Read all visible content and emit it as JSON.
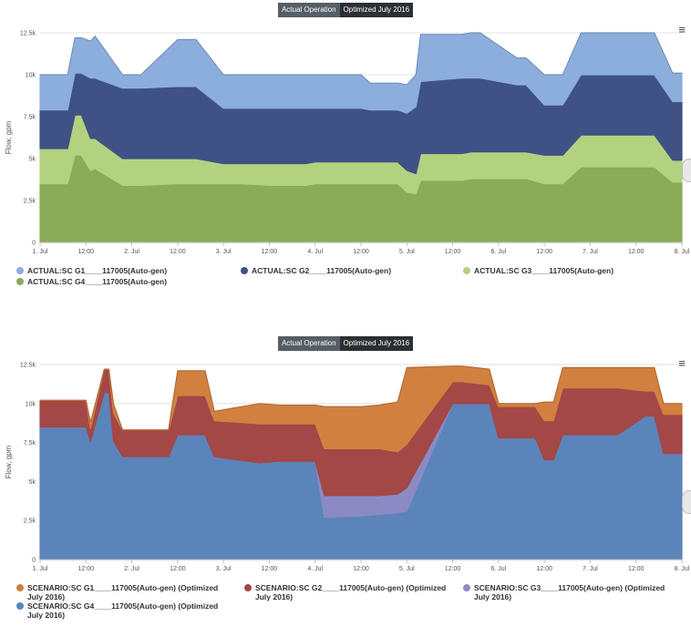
{
  "tabs": {
    "actual": "Actual Operation",
    "optimized": "Optimized July 2016"
  },
  "menu_glyph": "≡",
  "chart_data": [
    {
      "type": "area",
      "stacked": true,
      "ylabel": "Flow, gpm",
      "ylim": [
        0,
        12500
      ],
      "yticks": [
        "0",
        "2.5k",
        "5k",
        "7.5k",
        "10k",
        "12.5k"
      ],
      "xlim": [
        0,
        7
      ],
      "xticks": [
        "1. Jul",
        "12:00",
        "2. Jul",
        "12:00",
        "3. Jul",
        "12:00",
        "4. Jul",
        "12:00",
        "5. Jul",
        "12:00",
        "6. Jul",
        "12:00",
        "7. Jul",
        "12:00",
        "8. Jul"
      ],
      "series": [
        {
          "name": "ACTUAL:SC G4____117005(Auto-gen)",
          "color": "#8aab58",
          "x": [
            0,
            0.3,
            0.38,
            0.45,
            0.55,
            0.6,
            0.9,
            1.1,
            1.5,
            1.7,
            2.0,
            2.2,
            2.5,
            2.9,
            3.0,
            3.5,
            3.6,
            3.9,
            4.0,
            4.1,
            4.15,
            4.6,
            4.7,
            4.8,
            5.2,
            5.3,
            5.5,
            5.7,
            5.9,
            6.3,
            6.7,
            6.9,
            7.0
          ],
          "values": [
            3500,
            3500,
            5200,
            5200,
            4300,
            4400,
            3400,
            3400,
            3500,
            3500,
            3500,
            3500,
            3400,
            3400,
            3500,
            3500,
            3500,
            3500,
            3000,
            2900,
            3700,
            3700,
            3800,
            3800,
            3800,
            3800,
            3500,
            3500,
            4500,
            4500,
            4500,
            3600,
            3600
          ]
        },
        {
          "name": "ACTUAL:SC G3____117005(Auto-gen)",
          "color": "#b3d27f",
          "x": [
            0,
            0.3,
            0.38,
            0.45,
            0.55,
            0.6,
            0.9,
            1.1,
            1.5,
            1.7,
            2.0,
            2.2,
            2.5,
            2.9,
            3.0,
            3.5,
            3.6,
            3.9,
            4.0,
            4.1,
            4.15,
            4.6,
            4.7,
            4.8,
            5.2,
            5.3,
            5.5,
            5.7,
            5.9,
            6.3,
            6.7,
            6.9,
            7.0
          ],
          "values": [
            2100,
            2100,
            2400,
            2400,
            1900,
            1800,
            1600,
            1600,
            1500,
            1500,
            1200,
            1200,
            1300,
            1300,
            1300,
            1300,
            1300,
            1300,
            1300,
            1200,
            1600,
            1600,
            1600,
            1600,
            1600,
            1600,
            1700,
            1700,
            1900,
            1900,
            1900,
            1300,
            1300
          ]
        },
        {
          "name": "ACTUAL:SC G2____117005(Auto-gen)",
          "color": "#3f5285",
          "x": [
            0,
            0.3,
            0.38,
            0.45,
            0.55,
            0.6,
            0.9,
            1.1,
            1.5,
            1.7,
            2.0,
            2.2,
            2.5,
            2.9,
            3.0,
            3.5,
            3.6,
            3.9,
            4.0,
            4.1,
            4.15,
            4.6,
            4.7,
            4.8,
            5.2,
            5.3,
            5.5,
            5.7,
            5.9,
            6.3,
            6.7,
            6.9,
            7.0
          ],
          "values": [
            2300,
            2300,
            2500,
            2500,
            3600,
            3600,
            4200,
            4200,
            4300,
            4300,
            3300,
            3300,
            3300,
            3300,
            3200,
            3200,
            3100,
            3100,
            3400,
            4000,
            4300,
            4500,
            4400,
            4400,
            4000,
            4000,
            3000,
            3000,
            3600,
            3600,
            3600,
            3500,
            3500
          ]
        },
        {
          "name": "ACTUAL:SC G1____117005(Auto-gen)",
          "color": "#8caedc",
          "x": [
            0,
            0.3,
            0.38,
            0.45,
            0.55,
            0.6,
            0.9,
            1.1,
            1.5,
            1.7,
            2.0,
            2.2,
            2.5,
            2.9,
            3.0,
            3.5,
            3.6,
            3.9,
            4.0,
            4.1,
            4.15,
            4.6,
            4.7,
            4.8,
            5.2,
            5.3,
            5.5,
            5.7,
            5.9,
            6.3,
            6.7,
            6.9,
            7.0
          ],
          "values": [
            2100,
            2100,
            2100,
            2100,
            2200,
            2500,
            800,
            800,
            2800,
            2800,
            2000,
            2000,
            2000,
            2000,
            2000,
            2000,
            1600,
            1600,
            1700,
            1900,
            2800,
            2600,
            2700,
            2700,
            1600,
            1600,
            1800,
            1800,
            2500,
            2500,
            2500,
            1700,
            1700
          ]
        }
      ],
      "legend": [
        {
          "label": "ACTUAL:SC G1____117005(Auto-gen)",
          "color": "#8caedc"
        },
        {
          "label": "ACTUAL:SC G2____117005(Auto-gen)",
          "color": "#3f5285"
        },
        {
          "label": "ACTUAL:SC G3____117005(Auto-gen)",
          "color": "#b3d27f"
        },
        {
          "label": "ACTUAL:SC G4____117005(Auto-gen)",
          "color": "#8aab58"
        }
      ]
    },
    {
      "type": "area",
      "stacked": true,
      "ylabel": "Flow, gpm",
      "ylim": [
        0,
        12500
      ],
      "yticks": [
        "0",
        "2.5k",
        "5k",
        "7.5k",
        "10k",
        "12.5k"
      ],
      "xlim": [
        0,
        7
      ],
      "xticks": [
        "1. Jul",
        "12:00",
        "2. Jul",
        "12:00",
        "3. Jul",
        "12:00",
        "4. Jul",
        "12:00",
        "5. Jul",
        "12:00",
        "6. Jul",
        "12:00",
        "7. Jul",
        "12:00",
        "8. Jul"
      ],
      "series": [
        {
          "name": "SCENARIO:SC G4____117005(Auto-gen) (Optimized July 2016)",
          "color": "#5b84ba",
          "x": [
            0,
            0.5,
            0.55,
            0.7,
            0.75,
            0.8,
            0.9,
            1.4,
            1.5,
            1.8,
            1.9,
            2.4,
            2.6,
            3.0,
            3.1,
            3.5,
            3.7,
            3.9,
            4.0,
            4.5,
            4.6,
            4.9,
            5.0,
            5.1,
            5.2,
            5.4,
            5.5,
            5.6,
            5.7,
            6.0,
            6.3,
            6.6,
            6.7,
            6.8,
            6.9,
            7.0
          ],
          "values": [
            8500,
            8500,
            7600,
            10700,
            10700,
            7600,
            6600,
            6600,
            8000,
            8000,
            6600,
            6200,
            6300,
            6300,
            2700,
            2800,
            2900,
            3000,
            3100,
            10000,
            10000,
            10000,
            7800,
            7800,
            7800,
            7800,
            6400,
            6400,
            8000,
            8000,
            8000,
            9200,
            9200,
            6800,
            6800,
            6800
          ]
        },
        {
          "name": "SCENARIO:SC G3____117005(Auto-gen) (Optimized July 2016)",
          "color": "#8a8bc4",
          "x": [
            0,
            0.5,
            0.55,
            0.7,
            0.75,
            0.8,
            0.9,
            1.4,
            1.5,
            1.8,
            1.9,
            2.4,
            2.6,
            3.0,
            3.1,
            3.5,
            3.7,
            3.9,
            4.0,
            4.5,
            4.6,
            4.9,
            5.0,
            5.1,
            5.2,
            5.4,
            5.5,
            5.6,
            5.7,
            6.0,
            6.3,
            6.6,
            6.7,
            6.8,
            6.9,
            7.0
          ],
          "values": [
            0,
            0,
            0,
            0,
            0,
            0,
            0,
            0,
            0,
            0,
            0,
            0,
            0,
            0,
            1400,
            1300,
            1200,
            1200,
            1500,
            0,
            0,
            0,
            0,
            0,
            0,
            0,
            0,
            0,
            0,
            0,
            0,
            0,
            0,
            0,
            0,
            0
          ]
        },
        {
          "name": "SCENARIO:SC G2____117005(Auto-gen) (Optimized July 2016)",
          "color": "#a34747",
          "x": [
            0,
            0.5,
            0.55,
            0.7,
            0.75,
            0.8,
            0.9,
            1.4,
            1.5,
            1.8,
            1.9,
            2.4,
            2.6,
            3.0,
            3.1,
            3.5,
            3.7,
            3.9,
            4.0,
            4.5,
            4.6,
            4.9,
            5.0,
            5.1,
            5.2,
            5.4,
            5.5,
            5.6,
            5.7,
            6.0,
            6.3,
            6.6,
            6.7,
            6.8,
            6.9,
            7.0
          ],
          "values": [
            1700,
            1700,
            800,
            1500,
            1500,
            1800,
            1700,
            1700,
            2500,
            2500,
            2300,
            2500,
            2400,
            2400,
            3000,
            3000,
            3000,
            2700,
            2800,
            1400,
            1400,
            1200,
            2000,
            2000,
            2000,
            2000,
            2500,
            2500,
            3000,
            3000,
            3000,
            1600,
            1600,
            2500,
            2500,
            2500
          ]
        },
        {
          "name": "SCENARIO:SC G1____117005(Auto-gen) (Optimized July 2016)",
          "color": "#d2803f",
          "x": [
            0,
            0.5,
            0.55,
            0.7,
            0.75,
            0.8,
            0.9,
            1.4,
            1.5,
            1.8,
            1.9,
            2.4,
            2.6,
            3.0,
            3.1,
            3.5,
            3.7,
            3.9,
            4.0,
            4.5,
            4.6,
            4.9,
            5.0,
            5.1,
            5.2,
            5.4,
            5.5,
            5.6,
            5.7,
            6.0,
            6.3,
            6.6,
            6.7,
            6.8,
            6.9,
            7.0
          ],
          "values": [
            0,
            0,
            400,
            0,
            0,
            600,
            0,
            0,
            1600,
            1600,
            600,
            1300,
            1200,
            1200,
            2700,
            2700,
            2800,
            3200,
            4900,
            1000,
            1000,
            1000,
            200,
            200,
            200,
            200,
            1200,
            1200,
            1300,
            1300,
            1300,
            1500,
            1500,
            700,
            700,
            700
          ]
        }
      ],
      "legend": [
        {
          "label": "SCENARIO:SC G1____117005(Auto-gen) (Optimized July 2016)",
          "color": "#d2803f"
        },
        {
          "label": "SCENARIO:SC G2____117005(Auto-gen) (Optimized July 2016)",
          "color": "#a34747"
        },
        {
          "label": "SCENARIO:SC G3____117005(Auto-gen) (Optimized July 2016)",
          "color": "#8a8bc4"
        },
        {
          "label": "SCENARIO:SC G4____117005(Auto-gen) (Optimized July 2016)",
          "color": "#5b84ba"
        }
      ]
    }
  ]
}
